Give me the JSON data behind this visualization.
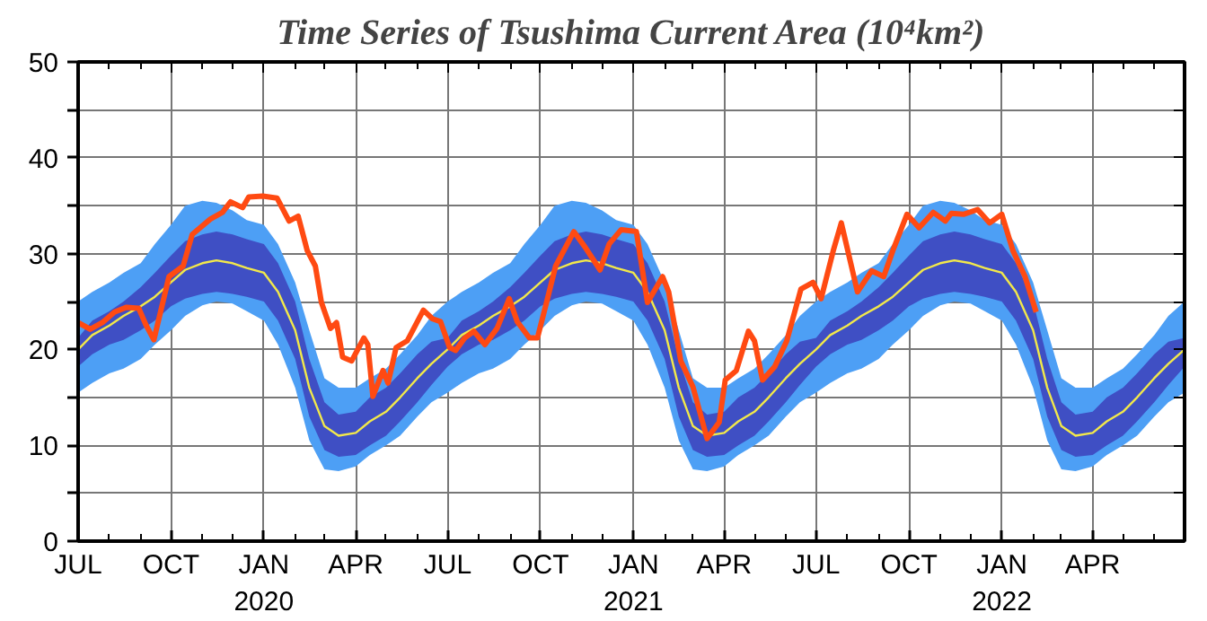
{
  "chart_data": {
    "type": "line",
    "title": "Time Series of Tsushima Current Area (10⁴km²)",
    "x": [
      "2019-07-01",
      "2019-07-15",
      "2019-08-01",
      "2019-08-15",
      "2019-09-01",
      "2019-09-15",
      "2019-10-01",
      "2019-10-15",
      "2019-11-01",
      "2019-11-15",
      "2019-12-01",
      "2019-12-15",
      "2020-01-01",
      "2020-01-15",
      "2020-02-01",
      "2020-02-15",
      "2020-03-01",
      "2020-03-15",
      "2020-04-01",
      "2020-04-15",
      "2020-05-01",
      "2020-05-15",
      "2020-06-01",
      "2020-06-15",
      "2020-07-01",
      "2020-07-15",
      "2020-08-01",
      "2020-08-15",
      "2020-09-01",
      "2020-09-15",
      "2020-10-01",
      "2020-10-15",
      "2020-11-01",
      "2020-11-15",
      "2020-12-01",
      "2020-12-15",
      "2021-01-01",
      "2021-01-15",
      "2021-02-01",
      "2021-02-15",
      "2021-03-01",
      "2021-03-15",
      "2021-04-01",
      "2021-04-15",
      "2021-05-01",
      "2021-05-15",
      "2021-06-01",
      "2021-06-15",
      "2021-07-01",
      "2021-07-15",
      "2021-08-01",
      "2021-08-15",
      "2021-09-01",
      "2021-09-15",
      "2021-10-01",
      "2021-10-15",
      "2021-11-01",
      "2021-11-15",
      "2021-12-01",
      "2021-12-15",
      "2022-01-01",
      "2022-01-15",
      "2022-02-01",
      "2022-02-15",
      "2022-03-01",
      "2022-03-15",
      "2022-04-01",
      "2022-04-15",
      "2022-05-01",
      "2022-05-15",
      "2022-06-01",
      "2022-06-15",
      "2022-07-01"
    ],
    "series": [
      {
        "color": "#4d9ff5",
        "values": [
          null,
          null,
          null,
          null,
          null,
          null,
          null,
          null,
          null,
          null,
          null,
          null,
          null,
          null,
          null,
          null,
          null,
          null,
          null,
          null,
          null,
          null,
          null,
          null,
          null,
          null,
          null,
          null,
          null,
          null,
          null,
          null,
          null,
          null,
          null,
          null,
          null,
          null,
          null,
          null,
          null,
          null,
          null,
          null,
          null,
          null,
          null,
          null,
          null,
          null,
          null,
          null,
          null,
          null,
          null,
          null,
          null,
          null,
          null,
          null,
          null,
          null,
          null,
          null,
          null,
          null,
          null,
          null,
          null,
          null,
          null,
          null,
          null
        ],
        "upper": [
          25,
          26,
          27,
          28,
          29,
          31,
          33,
          35,
          35.5,
          35.3,
          34.5,
          33.5,
          33,
          31,
          27,
          22,
          17,
          16,
          16,
          17,
          18,
          19.5,
          21.5,
          23.5,
          25,
          26,
          27,
          28,
          29,
          31,
          33,
          35,
          35.5,
          35.3,
          34.5,
          33.5,
          33,
          31,
          27,
          22,
          17,
          16,
          16,
          17,
          18,
          19.5,
          21.5,
          23.5,
          25,
          26,
          27,
          28,
          29,
          31,
          33,
          35,
          35.5,
          35.3,
          34.5,
          33.5,
          33,
          31,
          27,
          22,
          17,
          16,
          16,
          17,
          18,
          19.5,
          21.5,
          23.5,
          25
        ],
        "lower": [
          15.5,
          16.5,
          17.5,
          18,
          19,
          20.5,
          22,
          23.5,
          24.6,
          25,
          24.8,
          24,
          23,
          20.5,
          16,
          10.5,
          7.5,
          7.3,
          7.8,
          9,
          10,
          11,
          13,
          14.5,
          15.5,
          16.5,
          17.5,
          18,
          19,
          20.5,
          22,
          23.5,
          24.6,
          25,
          24.8,
          24,
          23,
          20.5,
          16,
          10.5,
          7.5,
          7.3,
          7.8,
          9,
          10,
          11,
          13,
          14.5,
          15.5,
          16.5,
          17.5,
          18,
          19,
          20.5,
          22,
          23.5,
          24.6,
          25,
          24.8,
          24,
          23,
          20.5,
          16,
          10.5,
          7.5,
          7.3,
          7.8,
          9,
          10,
          11,
          13,
          14.5,
          15.5
        ]
      },
      {
        "color": "#3f4fc4",
        "values": [
          null,
          null,
          null,
          null,
          null,
          null,
          null,
          null,
          null,
          null,
          null,
          null,
          null,
          null,
          null,
          null,
          null,
          null,
          null,
          null,
          null,
          null,
          null,
          null,
          null,
          null,
          null,
          null,
          null,
          null,
          null,
          null,
          null,
          null,
          null,
          null,
          null,
          null,
          null,
          null,
          null,
          null,
          null,
          null,
          null,
          null,
          null,
          null,
          null,
          null,
          null,
          null,
          null,
          null,
          null,
          null,
          null,
          null,
          null,
          null,
          null,
          null,
          null,
          null,
          null,
          null,
          null,
          null,
          null,
          null,
          null,
          null,
          null
        ],
        "upper": [
          21.2,
          23,
          24,
          25,
          26.5,
          28,
          29.8,
          31.3,
          32,
          32.3,
          32,
          31.5,
          31,
          29,
          25,
          19,
          14.5,
          13.2,
          13.5,
          15,
          16,
          17.5,
          19.5,
          20.8,
          21.2,
          23,
          24,
          25,
          26.5,
          28,
          29.8,
          31.3,
          32,
          32.3,
          32,
          31.5,
          31,
          29,
          25,
          19,
          14.5,
          13.2,
          13.5,
          15,
          16,
          17.5,
          19.5,
          20.8,
          21.2,
          23,
          24,
          25,
          26.5,
          28,
          29.8,
          31.3,
          32,
          32.3,
          32,
          31.5,
          31,
          29,
          25,
          19,
          14.5,
          13.2,
          13.5,
          15,
          16,
          17.5,
          19.5,
          20.8,
          21.2
        ],
        "lower": [
          18.2,
          19.5,
          20.5,
          21,
          22,
          23,
          24.5,
          25.3,
          25.8,
          26,
          25.8,
          25.5,
          25,
          23,
          19,
          13,
          9.5,
          8.8,
          9,
          10,
          11,
          12.5,
          14.5,
          16.3,
          18.2,
          19.5,
          20.5,
          21,
          22,
          23,
          24.5,
          25.3,
          25.8,
          26,
          25.8,
          25.5,
          25,
          23,
          19,
          13,
          9.5,
          8.8,
          9,
          10,
          11,
          12.5,
          14.5,
          16.3,
          18.2,
          19.5,
          20.5,
          21,
          22,
          23,
          24.5,
          25.3,
          25.8,
          26,
          25.8,
          25.5,
          25,
          23,
          19,
          13,
          9.5,
          8.8,
          9,
          10,
          11,
          12.5,
          14.5,
          16.3,
          18.2
        ]
      },
      {
        "color": "#f2e84a",
        "values": [
          20,
          21.5,
          22.5,
          23.5,
          24.5,
          25.5,
          27,
          28.3,
          29,
          29.3,
          29,
          28.5,
          28,
          26,
          22,
          16,
          12,
          11,
          11.3,
          12.5,
          13.5,
          15,
          17,
          18.5,
          20,
          21.5,
          22.5,
          23.5,
          24.5,
          25.5,
          27,
          28.3,
          29,
          29.3,
          29,
          28.5,
          28,
          26,
          22,
          16,
          12,
          11,
          11.3,
          12.5,
          13.5,
          15,
          17,
          18.5,
          20,
          21.5,
          22.5,
          23.5,
          24.5,
          25.5,
          27,
          28.3,
          29,
          29.3,
          29,
          28.5,
          28,
          26,
          22,
          16,
          12,
          11,
          11.3,
          12.5,
          13.5,
          15,
          17,
          18.5,
          20
        ]
      },
      {
        "color": "#ff4a12",
        "x": [
          "2019-07-01",
          "2019-07-13",
          "2019-07-25",
          "2019-08-06",
          "2019-08-18",
          "2019-08-30",
          "2019-09-06",
          "2019-09-14",
          "2019-09-29",
          "2019-10-13",
          "2019-10-22",
          "2019-11-09",
          "2019-11-21",
          "2019-11-29",
          "2019-12-11",
          "2019-12-17",
          "2019-12-31",
          "2020-01-14",
          "2020-01-26",
          "2020-02-04",
          "2020-02-13",
          "2020-02-21",
          "2020-02-27",
          "2020-03-07",
          "2020-03-13",
          "2020-03-19",
          "2020-03-28",
          "2020-04-09",
          "2020-04-13",
          "2020-04-18",
          "2020-04-28",
          "2020-05-03",
          "2020-05-11",
          "2020-05-22",
          "2020-06-07",
          "2020-06-16",
          "2020-06-24",
          "2020-07-03",
          "2020-07-09",
          "2020-07-18",
          "2020-07-27",
          "2020-08-07",
          "2020-08-19",
          "2020-08-31",
          "2020-09-08",
          "2020-09-20",
          "2020-09-28",
          "2020-10-07",
          "2020-10-16",
          "2020-11-03",
          "2020-11-14",
          "2020-11-29",
          "2020-12-08",
          "2020-12-20",
          "2021-01-04",
          "2021-01-15",
          "2021-01-30",
          "2021-02-05",
          "2021-02-17",
          "2021-03-01",
          "2021-03-15",
          "2021-03-27",
          "2021-04-02",
          "2021-04-13",
          "2021-04-25",
          "2021-05-01",
          "2021-05-09",
          "2021-05-21",
          "2021-06-02",
          "2021-06-16",
          "2021-06-28",
          "2021-07-06",
          "2021-07-18",
          "2021-07-26",
          "2021-08-11",
          "2021-08-25",
          "2021-09-06",
          "2021-09-15",
          "2021-09-29",
          "2021-10-11",
          "2021-10-25",
          "2021-11-06",
          "2021-11-12",
          "2021-11-24",
          "2021-12-08",
          "2021-12-20",
          "2022-01-01",
          "2022-01-12",
          "2022-01-24",
          "2022-02-04"
        ],
        "values": [
          22.8,
          22.1,
          22.8,
          23.9,
          24.4,
          24.3,
          22.6,
          21,
          27.6,
          28.7,
          32,
          33.6,
          34.3,
          35.4,
          34.8,
          35.9,
          36,
          35.8,
          33.4,
          33.9,
          30.3,
          28.7,
          24.9,
          22.2,
          22.8,
          19.2,
          18.8,
          21.2,
          20.5,
          15.1,
          17.8,
          16.5,
          20.2,
          20.9,
          24.1,
          23.2,
          22.9,
          20.2,
          19.9,
          21.2,
          21.9,
          20.5,
          22.2,
          25.3,
          22.9,
          21.2,
          21.2,
          24.9,
          28.7,
          32.3,
          30.7,
          28.3,
          31,
          32.5,
          32.3,
          24.9,
          27.6,
          26,
          18.8,
          16.1,
          10.7,
          12.4,
          16.8,
          17.8,
          21.9,
          20.9,
          16.8,
          18.2,
          20.9,
          26.3,
          27,
          25.3,
          30.3,
          33.2,
          26,
          28.2,
          27.6,
          30.3,
          34.1,
          32.7,
          34.3,
          33.4,
          34.2,
          34.1,
          34.6,
          33.2,
          34.1,
          30.3,
          27.6,
          23.9
        ]
      }
    ],
    "xlim": [
      "2019-07-01",
      "2022-07-01"
    ],
    "xticks": [
      {
        "value": "2019-07-01",
        "label": "JUL"
      },
      {
        "value": "2019-10-01",
        "label": "OCT"
      },
      {
        "value": "2020-01-01",
        "label": "JAN\n2020"
      },
      {
        "value": "2020-04-01",
        "label": "APR"
      },
      {
        "value": "2020-07-01",
        "label": "JUL"
      },
      {
        "value": "2020-10-01",
        "label": "OCT"
      },
      {
        "value": "2021-01-01",
        "label": "JAN\n2021"
      },
      {
        "value": "2021-04-01",
        "label": "APR"
      },
      {
        "value": "2021-07-01",
        "label": "JUL"
      },
      {
        "value": "2021-10-01",
        "label": "OCT"
      },
      {
        "value": "2022-01-01",
        "label": "JAN\n2022"
      },
      {
        "value": "2022-04-01",
        "label": "APR"
      },
      {
        "value": "2022-07-01",
        "label": null
      }
    ],
    "ylim": [
      0,
      50
    ],
    "yticks": [
      0,
      {
        "value": 5,
        "label": null
      },
      10,
      {
        "value": 15,
        "label": null
      },
      20,
      {
        "value": 25,
        "label": null
      },
      30,
      {
        "value": 35,
        "label": null
      },
      40,
      {
        "value": 45,
        "label": null
      },
      50
    ],
    "grid": true,
    "line_style": "solid"
  }
}
